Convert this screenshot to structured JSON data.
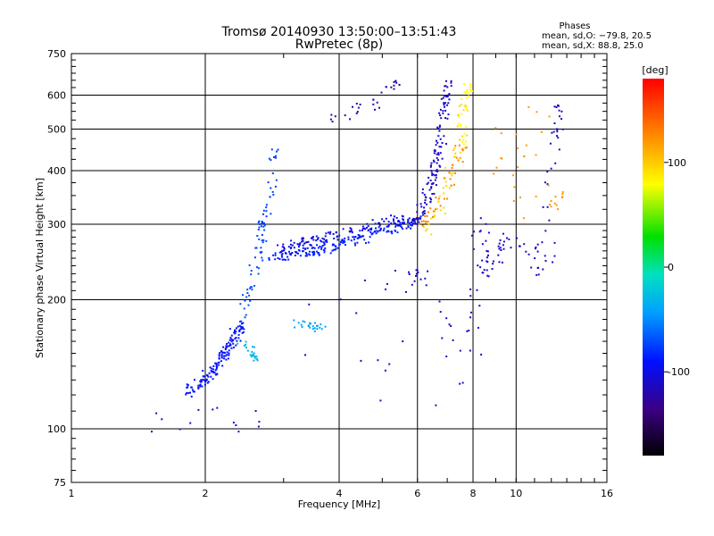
{
  "chart_data": {
    "type": "scatter",
    "title": "Tromsø 20140930 13:50:00–13:51:43",
    "subtitle": "RwPretec (8p)",
    "xlabel": "Frequency [MHz]",
    "ylabel": "Stationary phase Virtual Height [km]",
    "x_scale": "log",
    "y_scale": "log",
    "xlim": [
      1,
      16
    ],
    "ylim": [
      75,
      750
    ],
    "x_ticks": [
      1,
      2,
      4,
      6,
      8,
      10,
      16
    ],
    "y_ticks": [
      75,
      100,
      200,
      300,
      400,
      500,
      600,
      750
    ],
    "grid": true,
    "stats": {
      "heading": "Phases",
      "line_o": "mean, sd,O: −79.8, 20.5",
      "line_x": "mean, sd,X:  88.8, 25.0"
    },
    "colorbar": {
      "label": "[deg]",
      "range": [
        -180,
        180
      ],
      "ticks": [
        100,
        0,
        -100
      ]
    },
    "point_groups": [
      {
        "x": [
          1.8,
          1.9,
          2.0,
          2.05,
          2.1,
          2.15,
          2.2,
          2.25,
          2.3,
          2.35,
          2.4
        ],
        "y": [
          122,
          126,
          130,
          135,
          138,
          145,
          150,
          155,
          160,
          168,
          175
        ],
        "phase": -90
      },
      {
        "x": [
          2.4,
          2.45,
          2.5,
          2.55,
          2.6,
          2.65,
          2.7
        ],
        "y": [
          180,
          195,
          210,
          225,
          245,
          270,
          300
        ],
        "phase": -70
      },
      {
        "x": [
          2.6,
          2.65,
          2.7,
          2.75,
          2.8,
          2.85
        ],
        "y": [
          250,
          280,
          310,
          340,
          360,
          440
        ],
        "phase": -75
      },
      {
        "x": [
          2.8,
          3.0,
          3.2,
          3.4,
          3.6,
          3.8,
          4.0,
          4.3,
          4.6,
          5.0,
          5.4,
          5.8
        ],
        "y": [
          252,
          253,
          256,
          259,
          262,
          266,
          270,
          276,
          283,
          290,
          297,
          303
        ],
        "phase": -85
      },
      {
        "x": [
          2.9,
          3.1,
          3.3,
          3.5,
          3.7,
          4.0,
          4.4,
          4.8,
          5.2,
          5.6
        ],
        "y": [
          262,
          266,
          271,
          275,
          280,
          285,
          291,
          298,
          304,
          310
        ],
        "phase": -100
      },
      {
        "x": [
          5.8,
          6.0,
          6.2,
          6.4,
          6.5,
          6.6,
          6.7,
          6.8,
          6.9,
          7.0
        ],
        "y": [
          300,
          315,
          335,
          360,
          390,
          420,
          460,
          520,
          580,
          640
        ],
        "phase": -110
      },
      {
        "x": [
          6.2,
          6.4,
          6.6,
          6.8,
          7.0,
          7.2,
          7.4,
          7.6
        ],
        "y": [
          290,
          305,
          325,
          350,
          380,
          420,
          470,
          560
        ],
        "phase": 95
      },
      {
        "x": [
          6.0,
          6.3,
          6.6,
          6.9,
          7.2,
          7.5
        ],
        "y": [
          300,
          310,
          330,
          360,
          400,
          450
        ],
        "phase": 130
      },
      {
        "x": [
          7.4,
          7.5,
          7.6,
          7.7,
          7.8
        ],
        "y": [
          420,
          480,
          530,
          590,
          630
        ],
        "phase": 80
      },
      {
        "x": [
          3.2,
          3.3,
          3.5,
          3.6
        ],
        "y": [
          175,
          178,
          172,
          174
        ],
        "phase": -40
      },
      {
        "x": [
          2.4,
          2.5,
          2.55,
          2.6
        ],
        "y": [
          160,
          155,
          150,
          148
        ],
        "phase": -30
      },
      {
        "x": [
          3.7,
          4.2,
          4.6,
          5.0,
          5.4
        ],
        "y": [
          530,
          550,
          570,
          590,
          640
        ],
        "phase": -120
      },
      {
        "x": [
          1.5,
          2.7,
          5.6,
          6.3,
          7.8,
          8.3,
          8.6,
          9.2,
          10.3,
          11.5,
          12.0,
          12.5
        ],
        "y": [
          112,
          98,
          237,
          208,
          114,
          315,
          230,
          265,
          280,
          225,
          420,
          560
        ],
        "phase": -110
      },
      {
        "x": [
          8.8,
          9.4,
          10.2,
          10.8,
          11.8,
          12.6
        ],
        "y": [
          380,
          520,
          285,
          600,
          330,
          350
        ],
        "phase": 120
      }
    ]
  }
}
